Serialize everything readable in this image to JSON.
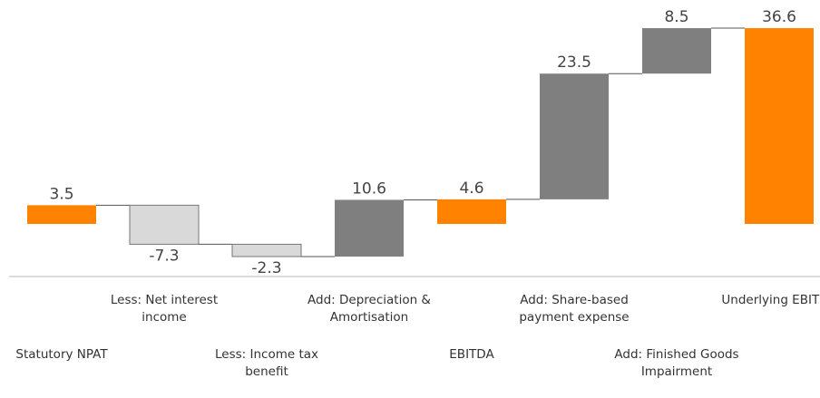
{
  "chart_data": {
    "type": "waterfall",
    "categories": [
      "Statutory NPAT",
      "Less: Net interest income",
      "Less: Income tax benefit",
      "Add: Depreciation & Amortisation",
      "EBITDA",
      "Add: Share-based payment expense",
      "Add: Finished Goods Impairment",
      "Underlying EBITDA"
    ],
    "values": [
      3.5,
      -7.3,
      -2.3,
      10.6,
      4.6,
      23.5,
      8.5,
      36.6
    ],
    "totals": [
      true,
      false,
      false,
      false,
      true,
      false,
      false,
      true
    ],
    "colors": [
      "#ff8200",
      "#d9d9d9",
      "#d9d9d9",
      "#7f7f7f",
      "#ff8200",
      "#7f7f7f",
      "#7f7f7f",
      "#ff8200"
    ]
  }
}
